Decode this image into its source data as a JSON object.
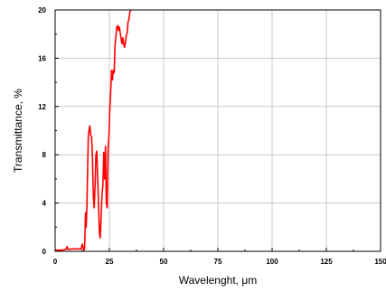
{
  "chart_data": {
    "type": "line",
    "title": "",
    "xlabel": "Wavelenght, μm",
    "ylabel": "Transmittance, %",
    "xlim": [
      0,
      150
    ],
    "ylim": [
      0,
      20
    ],
    "x_ticks": [
      0,
      25,
      50,
      75,
      100,
      125,
      150
    ],
    "y_ticks": [
      0,
      4,
      8,
      12,
      16,
      20
    ],
    "x_tick_labels": [
      "0",
      "25",
      "50",
      "75",
      "100",
      "125",
      "150"
    ],
    "y_tick_labels": [
      "0",
      "4",
      "8",
      "12",
      "16",
      "20"
    ],
    "grid": true,
    "line_color": "#ff0000",
    "series": [
      {
        "x": [
          0,
          3,
          5,
          5.5,
          6,
          8,
          10,
          12,
          12.5,
          13,
          13.3,
          13.6,
          14,
          14.3,
          14.6,
          15,
          15.3,
          15.6,
          16,
          16.4,
          16.8,
          17.2,
          17.6,
          18,
          18.4,
          18.8,
          19.2,
          19.6,
          20,
          20.4,
          20.8,
          21.2,
          21.6,
          22,
          22.4,
          22.8,
          23.2,
          23.6,
          24,
          24.4,
          24.8,
          25.2,
          25.6,
          26,
          26.4,
          26.8,
          27.2,
          27.6,
          28,
          28.4,
          28.8,
          29.2,
          29.6,
          30,
          30.4,
          30.8,
          31.2,
          31.6,
          32,
          32.4,
          32.8,
          33.2,
          33.6,
          34,
          34.4,
          34.8,
          35.2
        ],
        "y": [
          0.1,
          0.1,
          0.15,
          0.4,
          0.15,
          0.2,
          0.2,
          0.2,
          0.6,
          0.3,
          0.1,
          0.2,
          3.2,
          2.0,
          3.3,
          7.0,
          9.5,
          10.0,
          10.4,
          9.6,
          9.5,
          7.8,
          4.6,
          3.6,
          5.5,
          8.0,
          8.3,
          6.2,
          3.9,
          1.5,
          1.1,
          3.0,
          4.6,
          5.5,
          8.2,
          6.0,
          8.7,
          4.0,
          3.6,
          8.7,
          9.5,
          11.8,
          13.1,
          15.0,
          14.2,
          15.0,
          14.8,
          17.0,
          17.8,
          18.6,
          18.7,
          18.3,
          18.6,
          18.1,
          17.6,
          17.2,
          17.7,
          17.2,
          16.9,
          17.3,
          17.9,
          18.1,
          19.0,
          19.2,
          19.8,
          20.0,
          20.0
        ]
      }
    ]
  }
}
